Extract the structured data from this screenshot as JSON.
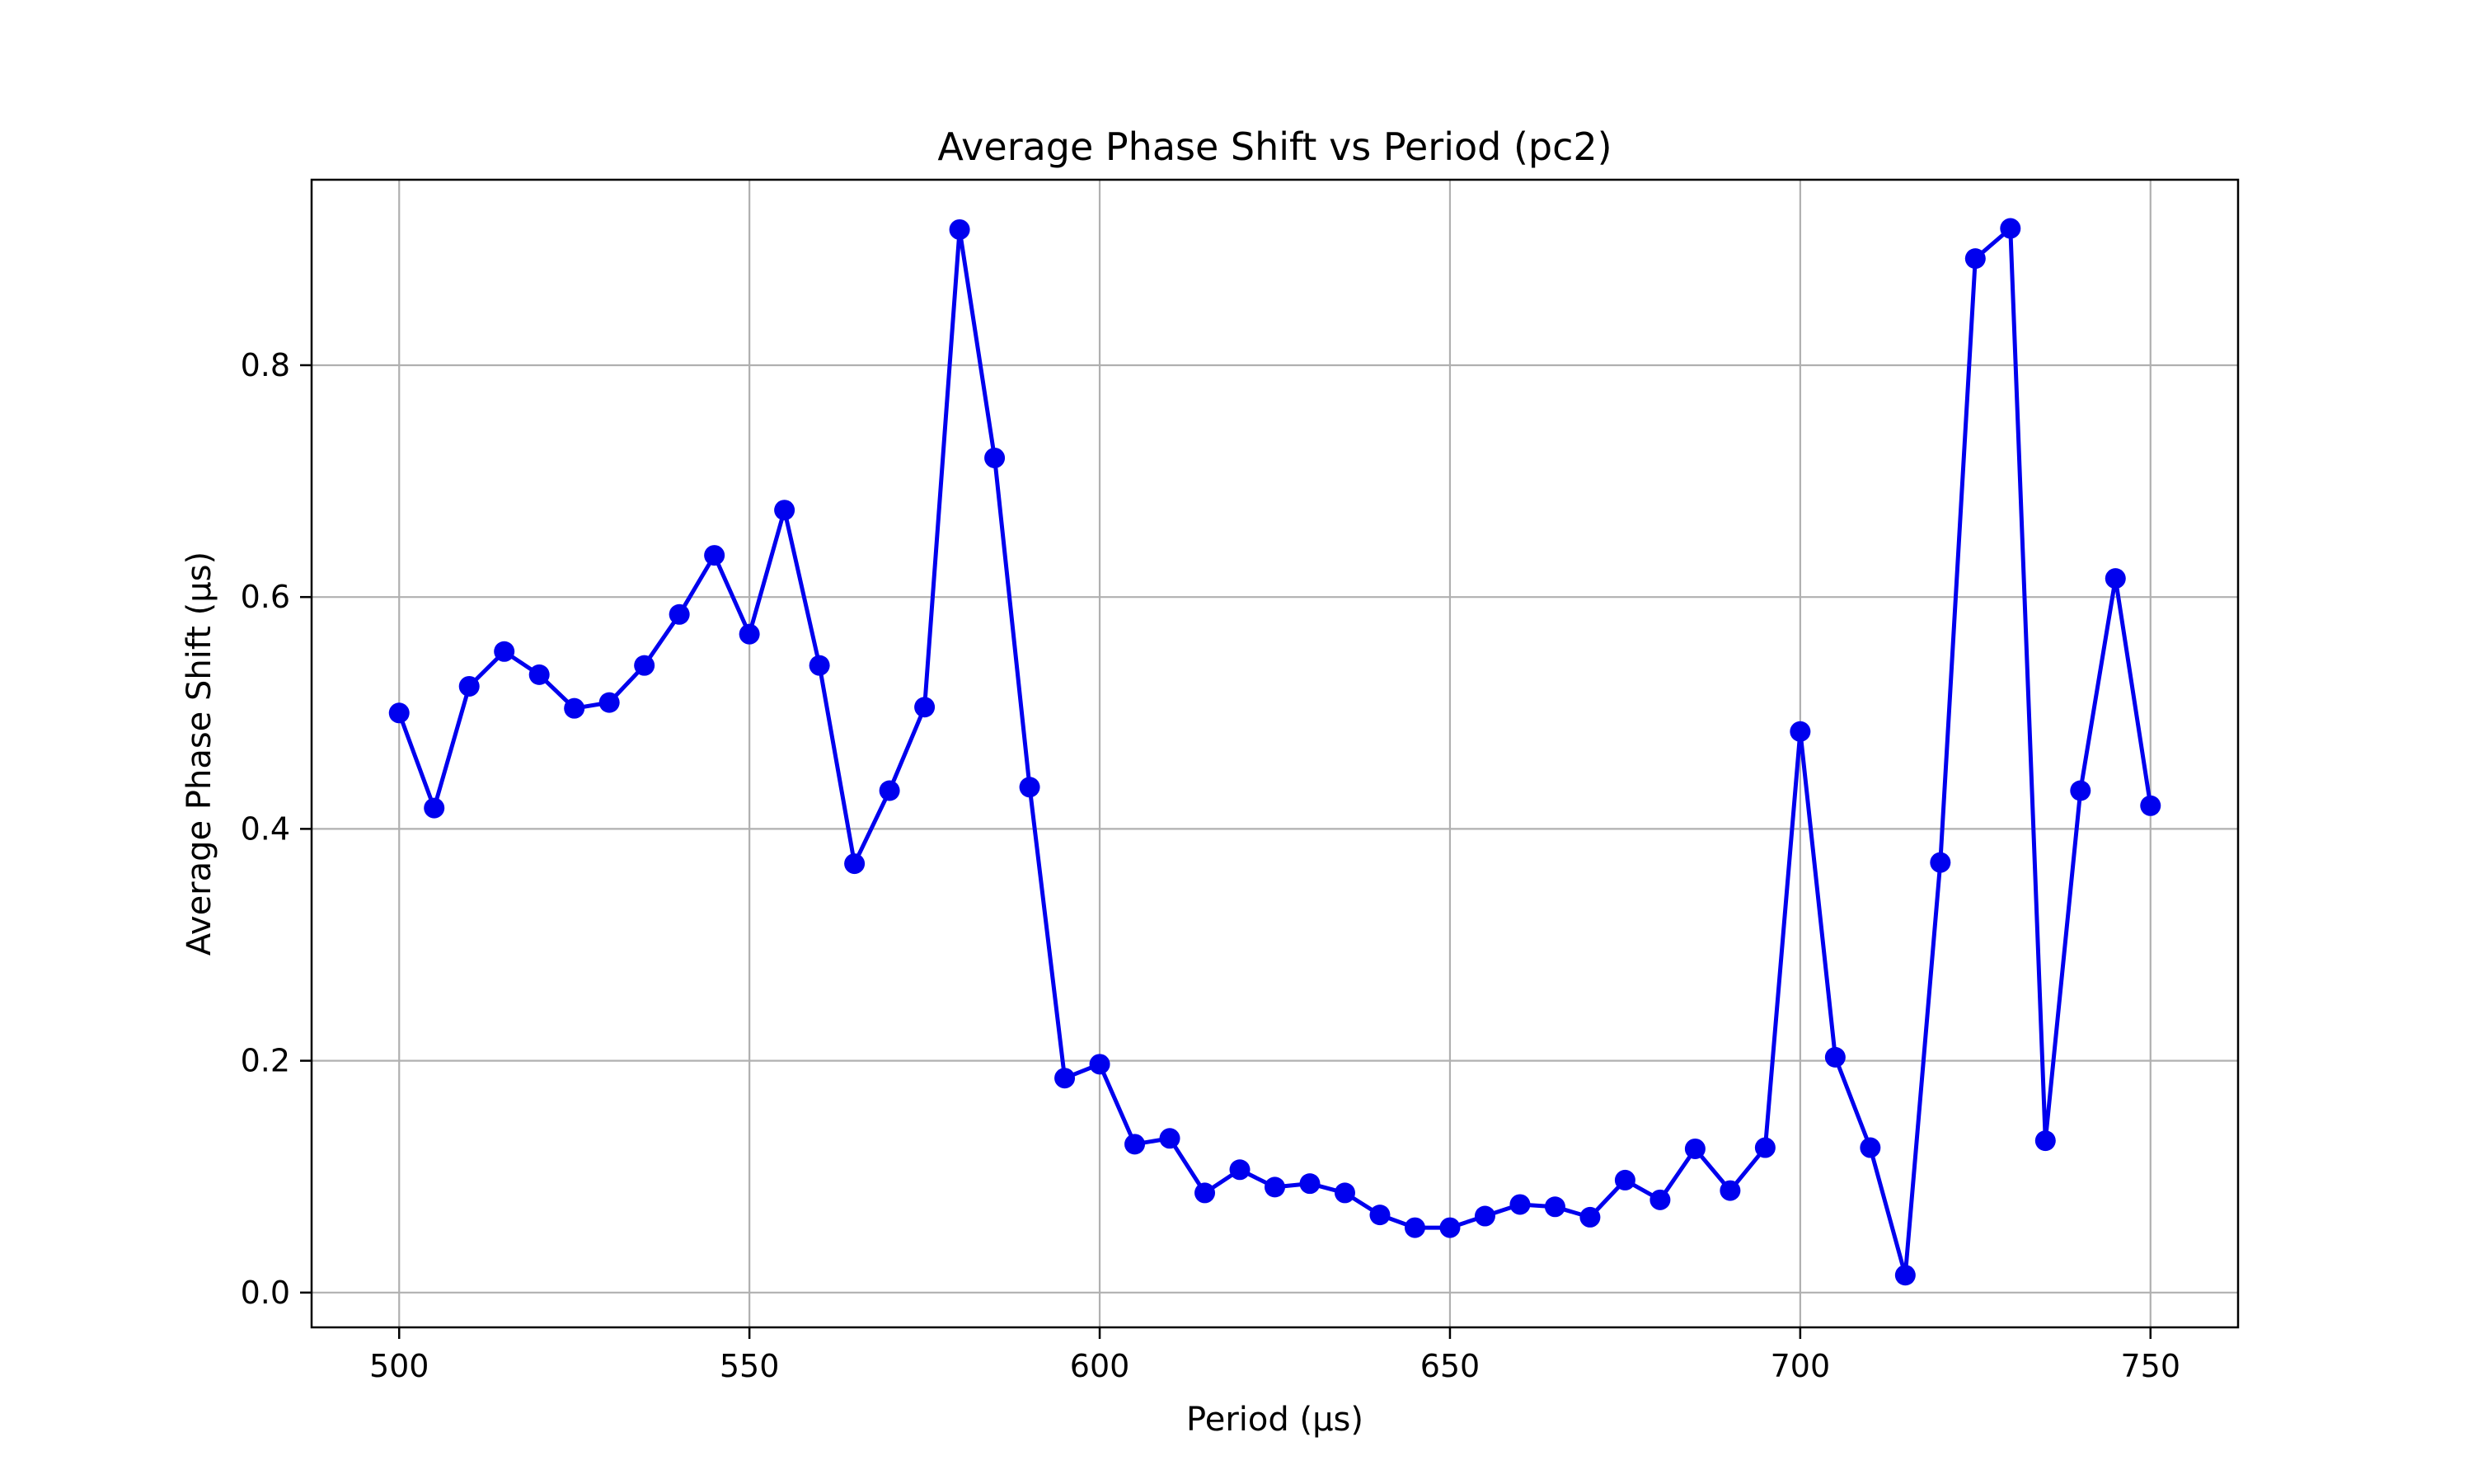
{
  "chart_data": {
    "type": "line",
    "title": "Average Phase Shift vs Period (pc2)",
    "xlabel": "Period (µs)",
    "ylabel": "Average Phase Shift (µs)",
    "xlim": [
      487.5,
      762.5
    ],
    "ylim": [
      -0.03,
      0.96
    ],
    "xticks": [
      500,
      550,
      600,
      650,
      700,
      750
    ],
    "yticks": [
      0.0,
      0.2,
      0.4,
      0.6,
      0.8
    ],
    "grid": true,
    "series_color": "#0000ee",
    "marker": "circle",
    "series": [
      {
        "x": [
          500,
          505,
          510,
          515,
          520,
          525,
          530,
          535,
          540,
          545,
          550,
          555,
          560,
          565,
          570,
          575,
          580,
          585,
          590,
          595,
          600,
          605,
          610,
          615,
          620,
          625,
          630,
          635,
          640,
          645,
          650,
          655,
          660,
          665,
          670,
          675,
          680,
          685,
          690,
          695,
          700,
          705,
          710,
          715,
          720,
          725,
          730,
          735,
          740,
          745,
          750
        ],
        "y": [
          0.5,
          0.418,
          0.523,
          0.553,
          0.533,
          0.504,
          0.509,
          0.541,
          0.585,
          0.636,
          0.568,
          0.675,
          0.541,
          0.37,
          0.433,
          0.505,
          0.917,
          0.72,
          0.436,
          0.185,
          0.197,
          0.128,
          0.133,
          0.086,
          0.106,
          0.091,
          0.094,
          0.086,
          0.067,
          0.056,
          0.056,
          0.066,
          0.076,
          0.074,
          0.065,
          0.097,
          0.08,
          0.124,
          0.088,
          0.125,
          0.484,
          0.203,
          0.125,
          0.015,
          0.371,
          0.892,
          0.918,
          0.131,
          0.433,
          0.616,
          0.42
        ]
      }
    ]
  }
}
